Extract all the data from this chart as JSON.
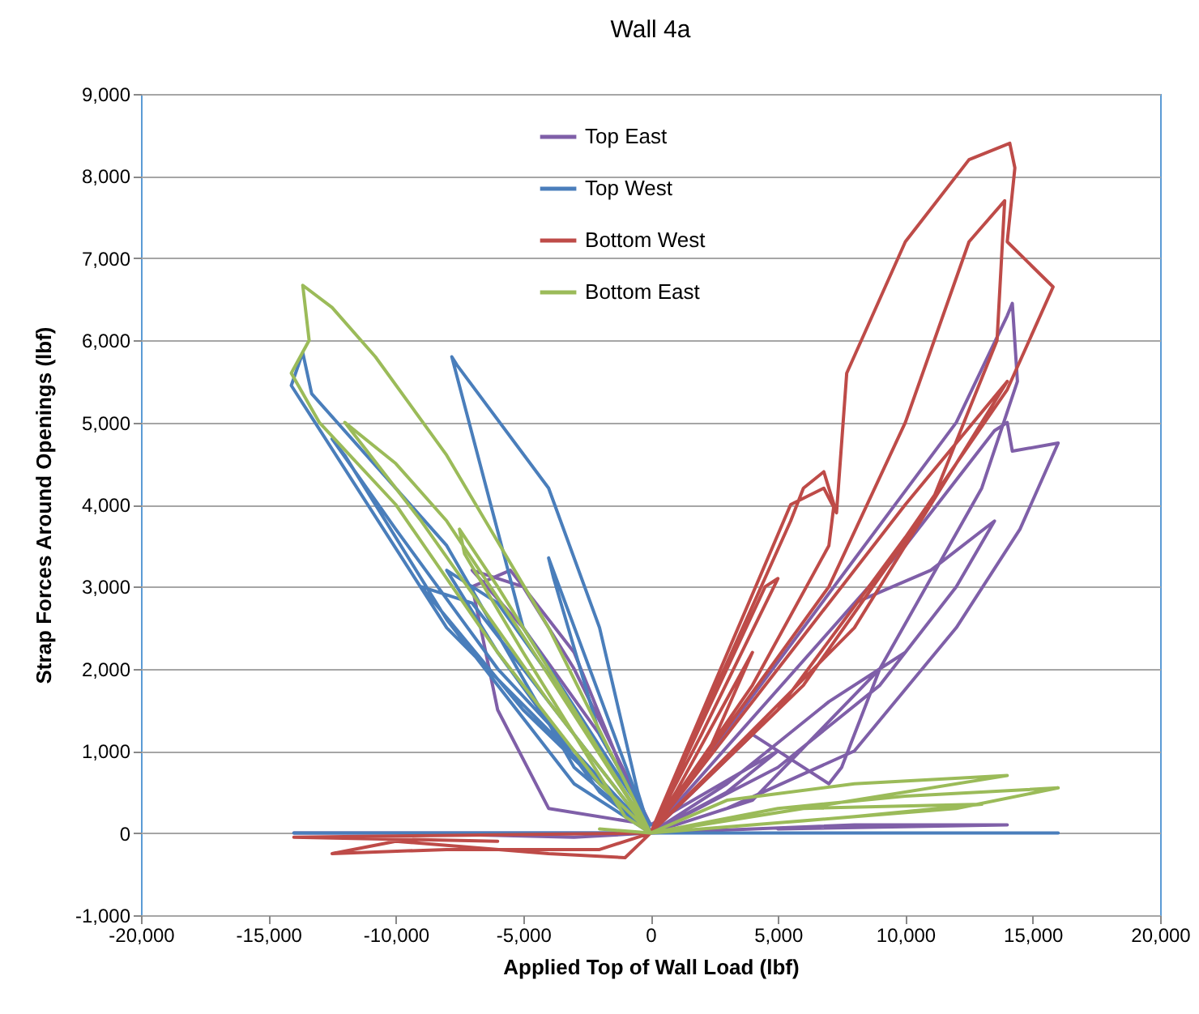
{
  "chart_data": {
    "type": "line",
    "title": "Wall 4a",
    "xlabel": "Applied Top of Wall Load (lbf)",
    "ylabel": "Strap Forces Around Openings (lbf)",
    "xlim": [
      -20000,
      20000
    ],
    "xticks": [
      {
        "value": -20000,
        "label": "-20,000"
      },
      {
        "value": -15000,
        "label": "-15,000"
      },
      {
        "value": -10000,
        "label": "-10,000"
      },
      {
        "value": -5000,
        "label": "-5,000"
      },
      0,
      {
        "value": 5000,
        "label": "5,000"
      },
      {
        "value": 10000,
        "label": "10,000"
      },
      {
        "value": 15000,
        "label": "15,000"
      },
      {
        "value": 20000,
        "label": "20,000"
      }
    ],
    "ylim": [
      -1000,
      9000
    ],
    "yticks": [
      {
        "value": -1000,
        "label": "-1,000"
      },
      0,
      {
        "value": 1000,
        "label": "1,000"
      },
      {
        "value": 2000,
        "label": "2,000"
      },
      {
        "value": 3000,
        "label": "3,000"
      },
      {
        "value": 4000,
        "label": "4,000"
      },
      {
        "value": 5000,
        "label": "5,000"
      },
      {
        "value": 6000,
        "label": "6,000"
      },
      {
        "value": 7000,
        "label": "7,000"
      },
      {
        "value": 8000,
        "label": "8,000"
      },
      {
        "value": 9000,
        "label": "9,000"
      }
    ],
    "grid": "y",
    "legend": "top",
    "line_style": "solid",
    "series": [
      {
        "name": "Top East",
        "color": "#7f5fa8",
        "x": [
          0,
          3000,
          5000,
          0,
          -2000,
          -5000,
          -7000,
          -5000,
          -3000,
          0,
          -4000,
          -6000,
          -7000,
          -5500,
          -3000,
          -500,
          0,
          4000,
          7000,
          7500,
          9000,
          10000,
          7000,
          3000,
          0,
          8000,
          11000,
          13500,
          12000,
          9000,
          5000,
          0,
          10000,
          13500,
          14000,
          14200,
          16000,
          14500,
          12000,
          8000,
          3000,
          0,
          12000,
          14000,
          14200,
          14400,
          13000,
          9000,
          4000,
          0,
          -5000,
          -14000,
          -10000,
          -3000,
          0,
          8000,
          14000,
          5000
        ],
        "values": [
          0,
          500,
          1000,
          100,
          1200,
          2500,
          3200,
          3000,
          2000,
          100,
          300,
          1500,
          3000,
          3200,
          2200,
          300,
          0,
          1200,
          600,
          800,
          2000,
          2200,
          1600,
          600,
          0,
          2800,
          3200,
          3800,
          3000,
          1800,
          800,
          0,
          3500,
          4900,
          5000,
          4650,
          4750,
          3700,
          2500,
          1000,
          300,
          0,
          5000,
          6300,
          6450,
          5500,
          4200,
          2000,
          400,
          0,
          0,
          0,
          0,
          -50,
          0,
          100,
          100,
          50
        ]
      },
      {
        "name": "Top West",
        "color": "#4a7ebb",
        "x": [
          0,
          -3000,
          -6000,
          -8000,
          -6000,
          -2000,
          0,
          -4000,
          -3800,
          -2000,
          0,
          -5000,
          -7800,
          -7600,
          -4000,
          -2000,
          -500,
          0,
          -6000,
          -10000,
          -12500,
          -12000,
          -8000,
          -3000,
          0,
          -8000,
          -14100,
          -13650,
          -13300,
          -8000,
          -3000,
          0,
          -7000,
          -9000,
          -5000,
          0,
          -14000,
          -5000,
          0,
          8000,
          16000,
          5000
        ],
        "values": [
          0,
          1500,
          2800,
          3200,
          2200,
          500,
          0,
          3350,
          3100,
          1200,
          100,
          2500,
          5800,
          5700,
          4200,
          2500,
          500,
          0,
          2000,
          3700,
          4800,
          4600,
          2600,
          600,
          0,
          2500,
          5450,
          5850,
          5350,
          3500,
          800,
          0,
          2800,
          3000,
          1500,
          0,
          0,
          0,
          0,
          0,
          0,
          0
        ]
      },
      {
        "name": "Bottom West",
        "color": "#be4b48",
        "x": [
          0,
          2000,
          4000,
          1000,
          0,
          4500,
          5000,
          2000,
          0,
          5500,
          6000,
          6800,
          7200,
          7000,
          4000,
          0,
          5500,
          6800,
          7300,
          7700,
          10000,
          12500,
          14100,
          14300,
          14000,
          15800,
          14000,
          10000,
          5000,
          0,
          7000,
          10000,
          12500,
          13900,
          13600,
          11000,
          6000,
          0,
          10000,
          14000,
          13000,
          8000,
          0,
          -2000,
          -8000,
          -12500,
          -10000,
          -4000,
          -1000,
          0,
          -14000,
          -6000
        ],
        "values": [
          0,
          800,
          2200,
          500,
          0,
          3000,
          3100,
          1200,
          0,
          3800,
          4200,
          4400,
          4000,
          3500,
          1800,
          0,
          4000,
          4200,
          3900,
          5600,
          7200,
          8200,
          8400,
          8100,
          7200,
          6650,
          5400,
          3600,
          1500,
          0,
          3000,
          5000,
          7200,
          7700,
          6000,
          4000,
          1800,
          0,
          4000,
          5500,
          5000,
          2500,
          0,
          -200,
          -200,
          -250,
          -100,
          -250,
          -300,
          0,
          -50,
          -100
        ]
      },
      {
        "name": "Bottom East",
        "color": "#9bbb59",
        "x": [
          0,
          -3000,
          -6000,
          -7500,
          -7300,
          -5000,
          -1000,
          0,
          -5000,
          -8000,
          -10000,
          -12000,
          -9000,
          -4000,
          0,
          -4000,
          -8000,
          -10800,
          -12500,
          -13650,
          -13400,
          -14100,
          -13000,
          -10000,
          -6000,
          -2000,
          0,
          3000,
          8000,
          14000,
          9000,
          4000,
          0,
          5000,
          10000,
          16000,
          12000,
          6000,
          0,
          6000,
          13000,
          8000,
          0,
          -2000
        ],
        "values": [
          0,
          1500,
          3000,
          3700,
          3400,
          2200,
          200,
          0,
          2400,
          3800,
          4500,
          5000,
          3800,
          1600,
          0,
          2500,
          4600,
          5800,
          6400,
          6670,
          6000,
          5600,
          5000,
          4000,
          2200,
          600,
          0,
          400,
          600,
          700,
          450,
          200,
          0,
          300,
          450,
          550,
          300,
          150,
          0,
          300,
          350,
          200,
          0,
          50
        ]
      }
    ]
  }
}
